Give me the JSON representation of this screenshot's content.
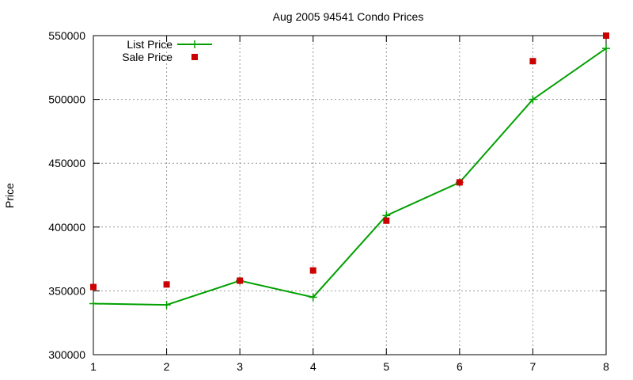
{
  "chart_data": {
    "type": "line",
    "title": "Aug 2005 94541 Condo Prices",
    "xlabel": "",
    "ylabel": "Price",
    "xlim": [
      1,
      8
    ],
    "ylim": [
      300000,
      550000
    ],
    "x_ticks": [
      1,
      2,
      3,
      4,
      5,
      6,
      7,
      8
    ],
    "y_ticks": [
      300000,
      350000,
      400000,
      450000,
      500000,
      550000
    ],
    "grid": true,
    "legend_position": "top-left",
    "series": [
      {
        "name": "List Price",
        "style": "linespoints",
        "marker": "plus",
        "color": "#00a000",
        "x": [
          1,
          2,
          3,
          4,
          5,
          6,
          7,
          8
        ],
        "values": [
          340000,
          339000,
          358000,
          345000,
          409000,
          435000,
          500000,
          540000
        ]
      },
      {
        "name": "Sale Price",
        "style": "points",
        "marker": "square",
        "color": "#cc0000",
        "x": [
          1,
          2,
          3,
          4,
          5,
          6,
          7,
          8
        ],
        "values": [
          353000,
          355000,
          358000,
          366000,
          405000,
          435000,
          530000,
          550000
        ]
      }
    ]
  }
}
